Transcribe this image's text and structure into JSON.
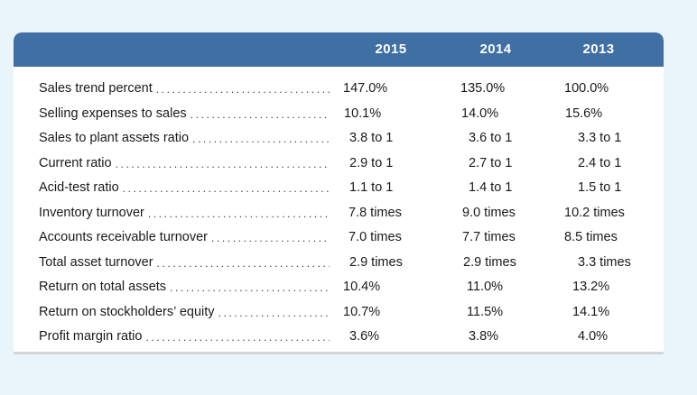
{
  "years": [
    "2015",
    "2014",
    "2013"
  ],
  "rows": [
    {
      "label": "Sales trend percent",
      "values": [
        "147.0%",
        "135.0%",
        "100.0%"
      ]
    },
    {
      "label": "Selling expenses to sales",
      "values": [
        "10.1%",
        "14.0%",
        "15.6%"
      ]
    },
    {
      "label": "Sales to plant assets ratio",
      "values": [
        "3.8 to 1",
        "3.6 to 1",
        "3.3 to 1"
      ]
    },
    {
      "label": "Current ratio",
      "values": [
        "2.9 to 1",
        "2.7 to 1",
        "2.4 to 1"
      ]
    },
    {
      "label": "Acid-test ratio",
      "values": [
        "1.1 to 1",
        "1.4 to 1",
        "1.5 to 1"
      ]
    },
    {
      "label": "Inventory turnover",
      "values": [
        "7.8 times",
        "9.0 times",
        "10.2 times"
      ]
    },
    {
      "label": "Accounts receivable turnover",
      "values": [
        "7.0 times",
        "7.7 times",
        "8.5 times"
      ]
    },
    {
      "label": "Total asset turnover",
      "values": [
        "2.9 times",
        "2.9 times",
        "3.3 times"
      ]
    },
    {
      "label": "Return on total assets",
      "values": [
        "10.4%",
        "11.0%",
        "13.2%"
      ]
    },
    {
      "label": "Return on stockholders’ equity",
      "values": [
        "10.7%",
        "11.5%",
        "14.1%"
      ]
    },
    {
      "label": "Profit margin ratio",
      "values": [
        "3.6%",
        "3.8%",
        "4.0%"
      ]
    }
  ],
  "colors": {
    "header": "#3f6fa3",
    "background": "#eaf4fb"
  }
}
